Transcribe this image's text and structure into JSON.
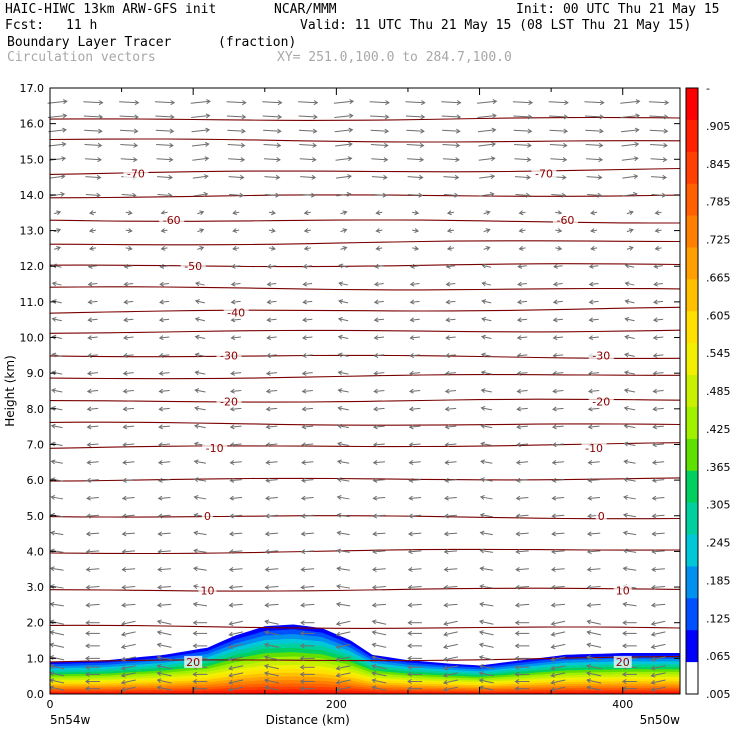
{
  "header": {
    "model": "HAIC-HIWC 13km ARW-GFS init",
    "org": "NCAR/MMM",
    "init": "Init: 00 UTC Thu 21 May 15",
    "fcst_label": "Fcst:",
    "fcst_value": "11 h",
    "valid": "Valid: 11 UTC Thu 21 May 15 (08 LST Thu 21 May 15)",
    "field": "Boundary Layer Tracer",
    "units": "(fraction)",
    "overlay": "Circulation vectors",
    "xy": "XY= 251.0,100.0 to 284.7,100.0"
  },
  "chart_data": {
    "type": "heatmap",
    "xlabel": "Distance (km)",
    "ylabel": "Height (km)",
    "xlim": [
      0,
      440
    ],
    "ylim": [
      0,
      17
    ],
    "x_ticks": [
      "0",
      "200",
      "400"
    ],
    "x_tick_values": [
      0,
      200,
      400
    ],
    "y_ticks": [
      "0.0",
      "1.0",
      "2.0",
      "3.0",
      "4.0",
      "5.0",
      "6.0",
      "7.0",
      "8.0",
      "9.0",
      "10.0",
      "11.0",
      "12.0",
      "13.0",
      "14.0",
      "15.0",
      "16.0",
      "17.0"
    ],
    "x_endpoints": {
      "left": "5n54w",
      "right": "5n50w"
    },
    "colorbar": {
      "labels": [
        "-",
        ".905",
        ".845",
        ".785",
        ".725",
        ".665",
        ".605",
        ".545",
        ".485",
        ".425",
        ".365",
        ".305",
        ".245",
        ".185",
        ".125",
        ".065",
        ".005"
      ],
      "colors": [
        "#ff0000",
        "#ff2000",
        "#ff4000",
        "#ff6000",
        "#ff8000",
        "#ffa000",
        "#ffc000",
        "#ffe000",
        "#f0f000",
        "#c8f000",
        "#a0f000",
        "#60e000",
        "#00d060",
        "#00d0a0",
        "#00c8d8",
        "#0090f0",
        "#0050ff",
        "#0000ff",
        "#ffffff"
      ]
    },
    "tracer_top_profile": {
      "x": [
        0,
        40,
        80,
        110,
        130,
        150,
        170,
        190,
        210,
        225,
        250,
        280,
        300,
        330,
        360,
        400,
        440
      ],
      "top_km": [
        0.9,
        0.95,
        1.1,
        1.3,
        1.65,
        1.9,
        1.95,
        1.85,
        1.5,
        1.1,
        0.95,
        0.85,
        0.8,
        0.95,
        1.1,
        1.15,
        1.15
      ]
    },
    "isotherm_labels": [
      {
        "text": "-70",
        "x": 60,
        "y_km": 14.6
      },
      {
        "text": "-70",
        "x": 345,
        "y_km": 14.6
      },
      {
        "text": "-60",
        "x": 85,
        "y_km": 13.3
      },
      {
        "text": "-60",
        "x": 360,
        "y_km": 13.3
      },
      {
        "text": "-50",
        "x": 100,
        "y_km": 12.0
      },
      {
        "text": "-40",
        "x": 130,
        "y_km": 10.7
      },
      {
        "text": "-30",
        "x": 125,
        "y_km": 9.5
      },
      {
        "text": "-30",
        "x": 385,
        "y_km": 9.5
      },
      {
        "text": "-20",
        "x": 125,
        "y_km": 8.2
      },
      {
        "text": "-20",
        "x": 385,
        "y_km": 8.2
      },
      {
        "text": "-10",
        "x": 115,
        "y_km": 6.9
      },
      {
        "text": "-10",
        "x": 380,
        "y_km": 6.9
      },
      {
        "text": "0",
        "x": 110,
        "y_km": 5.0
      },
      {
        "text": "0",
        "x": 385,
        "y_km": 5.0
      },
      {
        "text": "10",
        "x": 110,
        "y_km": 2.9
      },
      {
        "text": "10",
        "x": 400,
        "y_km": 2.9
      },
      {
        "text": "20",
        "x": 100,
        "y_km": 0.9
      },
      {
        "text": "20",
        "x": 400,
        "y_km": 0.9
      }
    ],
    "isotherm_levels_km": [
      0.9,
      1.9,
      2.9,
      3.95,
      5.0,
      6.0,
      6.9,
      7.6,
      8.2,
      8.85,
      9.5,
      10.15,
      10.7,
      11.4,
      12.0,
      12.6,
      13.3,
      13.95,
      14.6,
      15.55,
      16.1
    ],
    "vector_rows_km": [
      0.15,
      0.35,
      0.55,
      0.75,
      1.0,
      1.35,
      1.7,
      2.0,
      2.5,
      3.0,
      3.5,
      4.0,
      4.5,
      5.0,
      5.5,
      6.0,
      6.5,
      7.0,
      7.5,
      8.0,
      8.5,
      9.0,
      9.5,
      10.0,
      10.5,
      11.0,
      11.5,
      12.0,
      12.5,
      13.0,
      13.5,
      14.0,
      14.5,
      15.0,
      15.4,
      15.8,
      16.2,
      16.6
    ],
    "vector_columns_km": [
      5,
      30,
      55,
      80,
      105,
      130,
      155,
      180,
      205,
      230,
      255,
      280,
      305,
      330,
      355,
      380,
      405,
      425
    ]
  }
}
